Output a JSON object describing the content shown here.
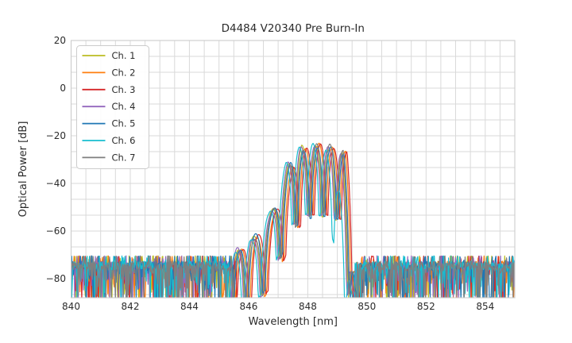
{
  "figure": {
    "title": "D4484 V20340 Pre Burn-In",
    "xlabel": "Wavelength [nm]",
    "ylabel": "Optical Power [dB]"
  },
  "legend": {
    "position": "upper-left",
    "items": [
      {
        "label": "Ch. 1",
        "color": "#bcbd22"
      },
      {
        "label": "Ch. 2",
        "color": "#ff7f0e"
      },
      {
        "label": "Ch. 3",
        "color": "#d62728"
      },
      {
        "label": "Ch. 4",
        "color": "#9467bd"
      },
      {
        "label": "Ch. 5",
        "color": "#1f77b4"
      },
      {
        "label": "Ch. 6",
        "color": "#17becf"
      },
      {
        "label": "Ch. 7",
        "color": "#7f7f7f"
      }
    ]
  },
  "chart_data": {
    "type": "line",
    "title": "D4484 V20340 Pre Burn-In",
    "xlabel": "Wavelength [nm]",
    "ylabel": "Optical Power [dB]",
    "xlim": [
      840,
      855
    ],
    "ylim": [
      -88,
      20
    ],
    "xticks": [
      840,
      842,
      844,
      846,
      848,
      850,
      852,
      854
    ],
    "xtick_labels": [
      "840",
      "842",
      "844",
      "846",
      "848",
      "850",
      "852",
      "854"
    ],
    "yticks": [
      20,
      0,
      -20,
      -40,
      -60,
      -80
    ],
    "ytick_labels": [
      "20",
      "0",
      "−20",
      "−40",
      "−60",
      "−80"
    ],
    "grid": {
      "visible": true,
      "color": "#d9d9d9",
      "x_step_nm": 0.5,
      "y_step_db": 6.667
    },
    "noise_floor_db": -74,
    "noise_spike_top_db": -68,
    "band": {
      "start_nm": 845.45,
      "end_nm": 849.66,
      "flat_top_db": -24.5,
      "drop_nm": 849.5
    },
    "lobes": {
      "centers_nm": [
        845.68,
        846.18,
        846.8,
        847.38,
        847.83,
        848.3,
        848.75,
        849.2,
        849.58
      ],
      "peaks_db": [
        -68.0,
        -62.5,
        -52.0,
        -32.0,
        -25.0,
        -24.3,
        -24.6,
        -27.0,
        -85.0
      ],
      "notch_depth_db": 29
    },
    "series": [
      {
        "name": "Ch. 1",
        "color": "#bcbd22",
        "wavelength_offset_nm": -0.03,
        "seed": 11
      },
      {
        "name": "Ch. 2",
        "color": "#ff7f0e",
        "wavelength_offset_nm": 0.08,
        "seed": 22
      },
      {
        "name": "Ch. 3",
        "color": "#d62728",
        "wavelength_offset_nm": 0.13,
        "seed": 33
      },
      {
        "name": "Ch. 4",
        "color": "#9467bd",
        "wavelength_offset_nm": -0.06,
        "seed": 44
      },
      {
        "name": "Ch. 5",
        "color": "#1f77b4",
        "wavelength_offset_nm": 0.03,
        "seed": 55
      },
      {
        "name": "Ch. 6",
        "color": "#17becf",
        "wavelength_offset_nm": -0.12,
        "seed": 66,
        "last_lobe_peak_db": -44
      },
      {
        "name": "Ch. 7",
        "color": "#7f7f7f",
        "wavelength_offset_nm": 0.0,
        "seed": 77
      }
    ]
  },
  "colors": {
    "background": "#ffffff",
    "grid": "#d9d9d9",
    "spine": "#cccccc",
    "text": "#2b2b2b",
    "legend_border": "#cccccc"
  }
}
